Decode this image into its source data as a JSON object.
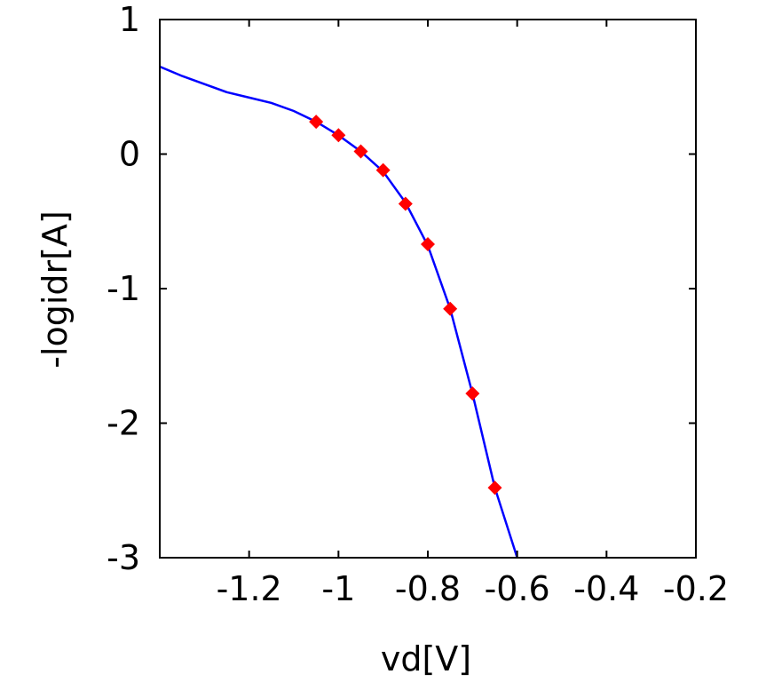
{
  "chart_data": {
    "type": "line",
    "title": "",
    "xlabel": "vd[V]",
    "ylabel": "-logidr[A]",
    "xlim": [
      -1.4,
      -0.2
    ],
    "ylim": [
      -3,
      1
    ],
    "xticks": [
      -1.2,
      -1,
      -0.8,
      -0.6,
      -0.4,
      -0.2
    ],
    "xtick_labels": [
      "-1.2",
      "-1",
      "-0.8",
      "-0.6",
      "-0.4",
      "-0.2"
    ],
    "yticks": [
      1,
      0,
      -1,
      -2,
      -3
    ],
    "ytick_labels": [
      "1",
      "0",
      "-1",
      "-2",
      "-3"
    ],
    "grid": false,
    "legend": false,
    "series": [
      {
        "kind": "line",
        "color": "#0000ff",
        "x": [
          -1.4,
          -1.35,
          -1.3,
          -1.25,
          -1.2,
          -1.15,
          -1.1,
          -1.05,
          -1.0,
          -0.95,
          -0.9,
          -0.85,
          -0.8,
          -0.75,
          -0.7,
          -0.65,
          -0.6
        ],
        "y": [
          0.65,
          0.58,
          0.52,
          0.46,
          0.42,
          0.38,
          0.32,
          0.24,
          0.14,
          0.02,
          -0.13,
          -0.36,
          -0.68,
          -1.15,
          -1.78,
          -2.48,
          -3.0
        ]
      },
      {
        "kind": "scatter",
        "color": "#ff0000",
        "marker": "diamond",
        "x": [
          -1.05,
          -1.0,
          -0.95,
          -0.9,
          -0.85,
          -0.8,
          -0.75,
          -0.7,
          -0.65
        ],
        "y": [
          0.24,
          0.14,
          0.02,
          -0.12,
          -0.37,
          -0.67,
          -1.15,
          -1.78,
          -2.48
        ]
      }
    ]
  }
}
